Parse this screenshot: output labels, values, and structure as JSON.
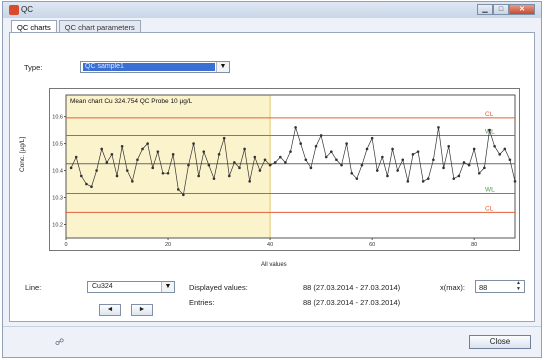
{
  "window": {
    "title": "QC"
  },
  "tabs": [
    {
      "label": "QC charts"
    },
    {
      "label": "QC chart parameters"
    }
  ],
  "type_field": {
    "label": "Type:",
    "value": "QC sample1"
  },
  "chart_data": {
    "type": "line",
    "title": "Mean chart Cu 324.754 QC Probe 10 µg/L",
    "xlabel": "All values",
    "ylabel": "Conc. [µg/L]",
    "xlim": [
      0,
      88
    ],
    "ylim": [
      10.15,
      10.68
    ],
    "xticks": [
      0,
      20,
      40,
      60,
      80
    ],
    "yticks": [
      10.2,
      10.3,
      10.4,
      10.5,
      10.6
    ],
    "ytick_labels": [
      "10.2",
      "10.3",
      "10.4",
      "10.5",
      "10.6"
    ],
    "highlight_x_range": [
      0,
      40
    ],
    "highlight_color": "#fbf3cc",
    "reference_lines": [
      {
        "label": "CL",
        "value": 10.595,
        "color": "#e0603c"
      },
      {
        "label": "WL",
        "value": 10.53,
        "color": "#4e9a52"
      },
      {
        "label": "",
        "value": 10.425,
        "color": "#6a6a6a"
      },
      {
        "label": "WL",
        "value": 10.315,
        "color": "#4e9a52"
      },
      {
        "label": "CL",
        "value": 10.245,
        "color": "#e0603c"
      }
    ],
    "series": [
      {
        "color": "#333333",
        "x": [
          1,
          2,
          3,
          4,
          5,
          6,
          7,
          8,
          9,
          10,
          11,
          12,
          13,
          14,
          15,
          16,
          17,
          18,
          19,
          20,
          21,
          22,
          23,
          24,
          25,
          26,
          27,
          28,
          29,
          30,
          31,
          32,
          33,
          34,
          35,
          36,
          37,
          38,
          39,
          40,
          41,
          42,
          43,
          44,
          45,
          46,
          47,
          48,
          49,
          50,
          51,
          52,
          53,
          54,
          55,
          56,
          57,
          58,
          59,
          60,
          61,
          62,
          63,
          64,
          65,
          66,
          67,
          68,
          69,
          70,
          71,
          72,
          73,
          74,
          75,
          76,
          77,
          78,
          79,
          80,
          81,
          82,
          83,
          84,
          85,
          86,
          87,
          88
        ],
        "y": [
          10.41,
          10.45,
          10.38,
          10.35,
          10.34,
          10.4,
          10.48,
          10.43,
          10.46,
          10.38,
          10.49,
          10.4,
          10.36,
          10.44,
          10.48,
          10.5,
          10.41,
          10.47,
          10.39,
          10.39,
          10.46,
          10.33,
          10.31,
          10.42,
          10.5,
          10.38,
          10.47,
          10.42,
          10.37,
          10.46,
          10.52,
          10.38,
          10.43,
          10.41,
          10.48,
          10.36,
          10.45,
          10.4,
          10.44,
          10.42,
          10.43,
          10.45,
          10.43,
          10.47,
          10.56,
          10.5,
          10.44,
          10.41,
          10.49,
          10.53,
          10.45,
          10.47,
          10.44,
          10.42,
          10.5,
          10.39,
          10.37,
          10.42,
          10.48,
          10.52,
          10.4,
          10.45,
          10.38,
          10.48,
          10.4,
          10.44,
          10.36,
          10.46,
          10.47,
          10.36,
          10.37,
          10.44,
          10.56,
          10.41,
          10.49,
          10.37,
          10.38,
          10.43,
          10.42,
          10.48,
          10.39,
          10.41,
          10.55,
          10.49,
          10.46,
          10.48,
          10.44,
          10.36
        ]
      }
    ]
  },
  "line_field": {
    "label": "Line:",
    "value": "Cu324"
  },
  "nav": {
    "prev": "◄",
    "next": "►"
  },
  "displayed_values": {
    "label": "Displayed values:",
    "value": "88 (27.03.2014 - 27.03.2014)"
  },
  "entries": {
    "label": "Entries:",
    "value": "88 (27.03.2014 - 27.03.2014)"
  },
  "xmax": {
    "label": "x(max):",
    "value": "88"
  },
  "close_label": "Close"
}
